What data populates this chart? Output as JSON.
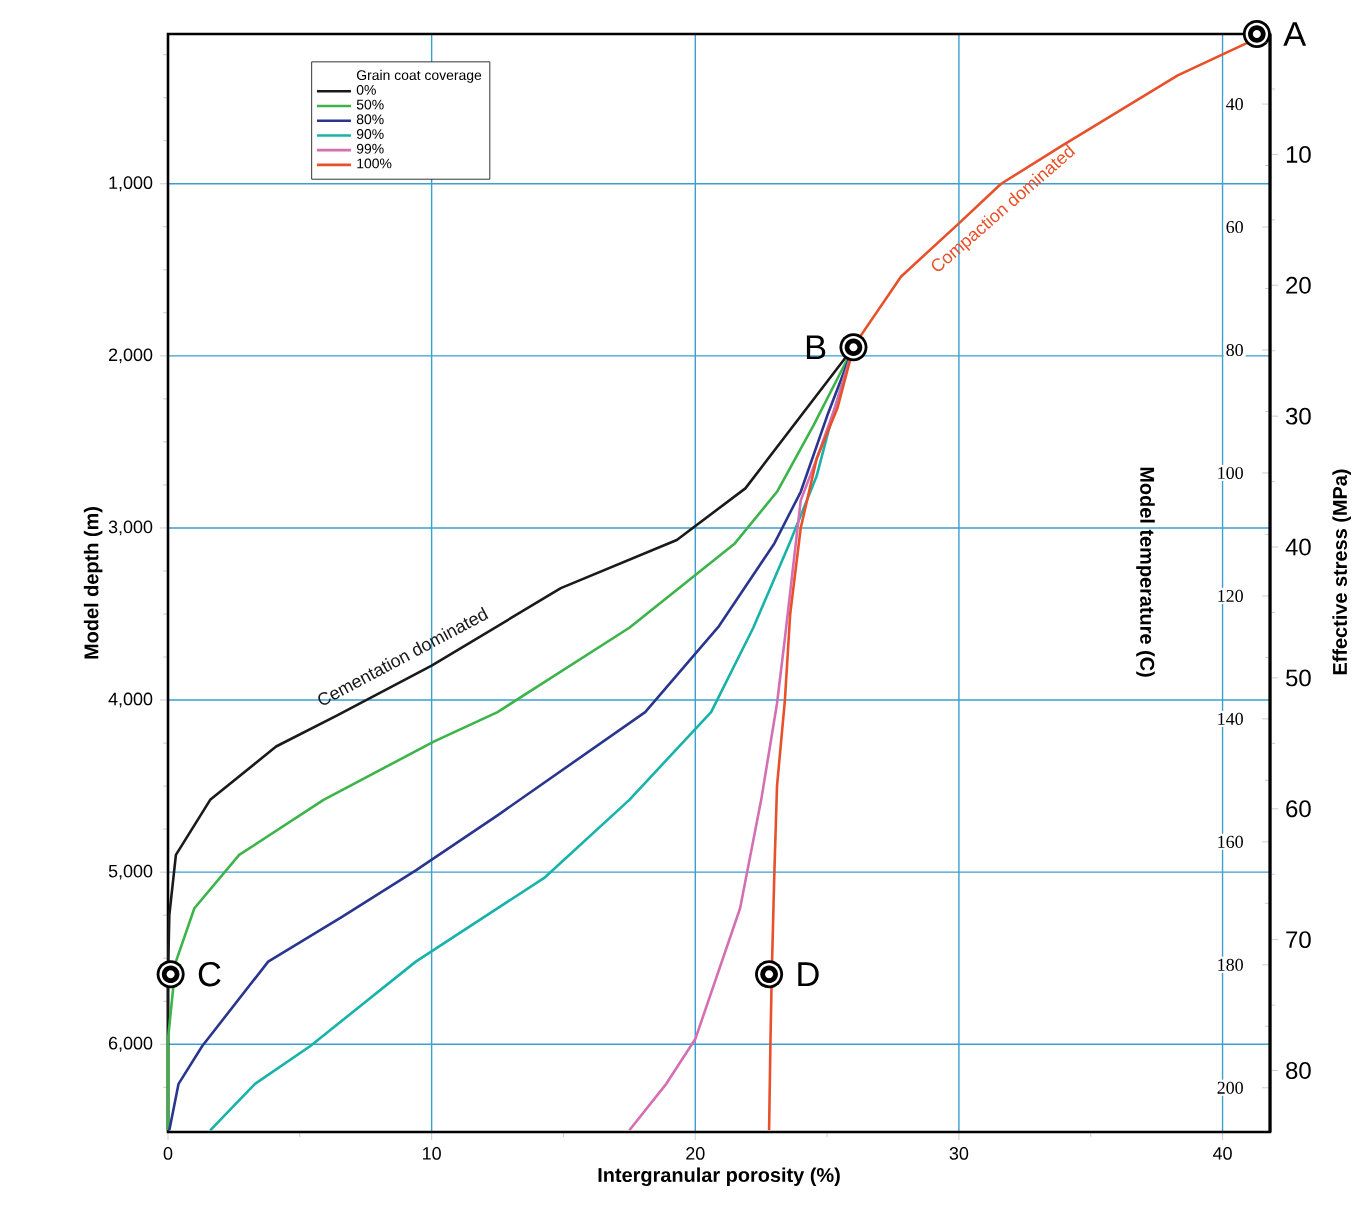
{
  "chart_data": {
    "type": "line",
    "xlabel": "Intergranular porosity (%)",
    "ylabel": "Model depth (m)",
    "y2label": "Model temperature (C)",
    "y3label": "Effective stress (MPa)",
    "legend_title": "Grain coat coverage",
    "legend": "top left",
    "grid": true,
    "xlim": [
      0,
      41.8
    ],
    "ylim": [
      6510,
      130
    ],
    "y2lim": [
      207.2,
      28.6
    ],
    "y3lim": [
      84.7,
      0.8
    ],
    "xticks": [
      0,
      {
        "value": 5,
        "label": null
      },
      10,
      {
        "value": 15,
        "label": null
      },
      20,
      {
        "value": 25,
        "label": null
      },
      30,
      {
        "value": 35,
        "label": null
      },
      40
    ],
    "yticks": [
      {
        "value": 250,
        "label": null
      },
      {
        "value": 500,
        "label": null
      },
      {
        "value": 750,
        "label": null
      },
      {
        "value": 1000,
        "label": "1,000"
      },
      {
        "value": 1250,
        "label": null
      },
      {
        "value": 1500,
        "label": null
      },
      {
        "value": 1750,
        "label": null
      },
      {
        "value": 2000,
        "label": "2,000"
      },
      {
        "value": 2250,
        "label": null
      },
      {
        "value": 2500,
        "label": null
      },
      {
        "value": 2750,
        "label": null
      },
      {
        "value": 3000,
        "label": "3,000"
      },
      {
        "value": 3250,
        "label": null
      },
      {
        "value": 3500,
        "label": null
      },
      {
        "value": 3750,
        "label": null
      },
      {
        "value": 4000,
        "label": "4,000"
      },
      {
        "value": 4250,
        "label": null
      },
      {
        "value": 4500,
        "label": null
      },
      {
        "value": 4750,
        "label": null
      },
      {
        "value": 5000,
        "label": "5,000"
      },
      {
        "value": 5250,
        "label": null
      },
      {
        "value": 5500,
        "label": null
      },
      {
        "value": 5750,
        "label": null
      },
      {
        "value": 6000,
        "label": "6,000"
      },
      {
        "value": 6250,
        "label": null
      }
    ],
    "y2ticks": [
      {
        "value": 30,
        "label": null
      },
      40,
      {
        "value": 50,
        "label": null
      },
      60,
      {
        "value": 70,
        "label": null
      },
      80,
      {
        "value": 90,
        "label": null
      },
      100,
      {
        "value": 110,
        "label": null
      },
      120,
      {
        "value": 130,
        "label": null
      },
      140,
      {
        "value": 150,
        "label": null
      },
      160,
      {
        "value": 170,
        "label": null
      },
      180,
      {
        "value": 190,
        "label": null
      },
      200
    ],
    "y3ticks": [
      {
        "value": 5,
        "label": null
      },
      10,
      {
        "value": 15,
        "label": null
      },
      20,
      {
        "value": 25,
        "label": null
      },
      30,
      {
        "value": 35,
        "label": null
      },
      40,
      {
        "value": 45,
        "label": null
      },
      50,
      {
        "value": 55,
        "label": null
      },
      60,
      {
        "value": 65,
        "label": null
      },
      70,
      {
        "value": 75,
        "label": null
      },
      80
    ],
    "series": [
      {
        "name": "0%",
        "color": "#1a1a1a",
        "x": [
          26.0,
          21.9,
          19.3,
          14.9,
          10.0,
          6.4,
          4.1,
          1.6,
          0.3,
          0.05,
          0,
          0
        ],
        "values": [
          1950,
          2770,
          3070,
          3350,
          3800,
          4090,
          4270,
          4580,
          4900,
          5250,
          5600,
          6500
        ]
      },
      {
        "name": "50%",
        "color": "#3cb44a",
        "x": [
          26.0,
          24.5,
          23.1,
          21.5,
          17.5,
          12.5,
          10.1,
          5.9,
          2.7,
          1.0,
          0.3,
          0,
          0
        ],
        "values": [
          1950,
          2400,
          2790,
          3090,
          3580,
          4070,
          4240,
          4580,
          4900,
          5210,
          5520,
          5970,
          6500
        ]
      },
      {
        "name": "80%",
        "color": "#2a3590",
        "x": [
          26.0,
          25.0,
          24.0,
          23.0,
          20.9,
          18.1,
          12.5,
          9.4,
          6.6,
          3.8,
          1.3,
          0.4,
          0.05
        ],
        "values": [
          1950,
          2350,
          2790,
          3090,
          3570,
          4070,
          4670,
          4990,
          5260,
          5520,
          6010,
          6230,
          6500
        ]
      },
      {
        "name": "90%",
        "color": "#17b3a9",
        "x": [
          26.0,
          25.2,
          24.6,
          23.6,
          22.2,
          20.6,
          17.5,
          14.3,
          9.4,
          5.4,
          3.3,
          1.6
        ],
        "values": [
          1950,
          2350,
          2700,
          3080,
          3580,
          4070,
          4580,
          5030,
          5520,
          6010,
          6230,
          6500
        ]
      },
      {
        "name": "99%",
        "color": "#d36fb2",
        "x": [
          26.0,
          25.3,
          24.6,
          24.0,
          23.4,
          23.1,
          22.5,
          21.7,
          20.0,
          18.9,
          17.5
        ],
        "values": [
          1950,
          2300,
          2600,
          2840,
          3640,
          4020,
          4580,
          5210,
          5970,
          6230,
          6500
        ]
      },
      {
        "name": "100%",
        "color": "#e8502a",
        "x": [
          41.3,
          41.1,
          38.3,
          33.9,
          31.6,
          30.0,
          27.8,
          26.2,
          26.0,
          25.4,
          24.6,
          24.0,
          23.6,
          23.4,
          23.1,
          23.0,
          22.9,
          22.85,
          22.8
        ],
        "values": [
          130,
          170,
          370,
          780,
          1000,
          1230,
          1540,
          1900,
          1950,
          2300,
          2600,
          3000,
          3500,
          4000,
          4500,
          5000,
          5600,
          6000,
          6500
        ]
      }
    ],
    "annotations": [
      {
        "text": "A",
        "x": 41.3,
        "y": 130
      },
      {
        "text": "B",
        "x": 26.0,
        "y": 1950
      },
      {
        "text": "C",
        "x": 0.1,
        "y": 5593
      },
      {
        "text": "D",
        "x": 22.8,
        "y": 5593
      },
      {
        "text": "Cementation dominated",
        "x": 9.5,
        "y": 3850
      },
      {
        "text": "Compaction dominated",
        "x": 31.0,
        "y": 1100
      }
    ]
  }
}
